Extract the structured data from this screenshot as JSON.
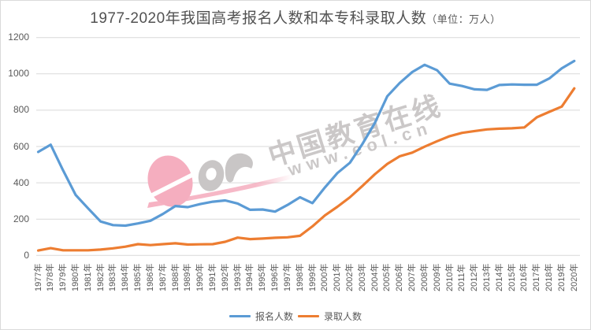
{
  "title": {
    "main": "1977-2020年我国高考报名人数和本专科录取人数",
    "unit": "（单位：万人）"
  },
  "watermark": {
    "brand": "中国教育在线",
    "site": "www.eol.cn",
    "logo": "eol-logo",
    "pink": "#f5aebf",
    "gray": "#c9c6c6"
  },
  "colors": {
    "enroll_line": "#5B9BD5",
    "admit_line": "#ED7D31",
    "gridline": "#D9D9D9",
    "axis_text": "#595959",
    "title_text": "#525252"
  },
  "chart_data": {
    "type": "line",
    "title": "1977-2020年我国高考报名人数和本专科录取人数（单位：万人）",
    "xlabel": "",
    "ylabel": "",
    "ylim": [
      0,
      1200
    ],
    "yticks": [
      0,
      200,
      400,
      600,
      800,
      1000,
      1200
    ],
    "grid": true,
    "legend_position": "bottom",
    "x": [
      "1977年",
      "1978年",
      "1979年",
      "1980年",
      "1981年",
      "1982年",
      "1983年",
      "1984年",
      "1985年",
      "1986年",
      "1987年",
      "1988年",
      "1989年",
      "1990年",
      "1991年",
      "1992年",
      "1993年",
      "1994年",
      "1995年",
      "1996年",
      "1997年",
      "1998年",
      "1999年",
      "2000年",
      "2001年",
      "2002年",
      "2003年",
      "2004年",
      "2005年",
      "2006年",
      "2007年",
      "2008年",
      "2009年",
      "2010年",
      "2011年",
      "2012年",
      "2013年",
      "2014年",
      "2015年",
      "2016年",
      "2017年",
      "2018年",
      "2019年",
      "2020年"
    ],
    "series": [
      {
        "name": "报名人数",
        "color": "#5B9BD5",
        "values": [
          570,
          610,
          468,
          333,
          259,
          187,
          167,
          164,
          176,
          191,
          228,
          272,
          266,
          283,
          296,
          303,
          286,
          251,
          253,
          241,
          278,
          320,
          288,
          375,
          454,
          510,
          613,
          729,
          877,
          950,
          1010,
          1050,
          1020,
          946,
          933,
          915,
          912,
          939,
          942,
          940,
          940,
          975,
          1031,
          1071
        ]
      },
      {
        "name": "录取人数",
        "color": "#ED7D31",
        "values": [
          27,
          40,
          28,
          28,
          28,
          32,
          39,
          48,
          62,
          57,
          62,
          67,
          60,
          61,
          62,
          75,
          98,
          90,
          93,
          97,
          100,
          108,
          160,
          221,
          268,
          320,
          382,
          447,
          504,
          546,
          566,
          599,
          629,
          657,
          675,
          685,
          694,
          698,
          700,
          705,
          761,
          791,
          820,
          920
        ]
      }
    ]
  }
}
